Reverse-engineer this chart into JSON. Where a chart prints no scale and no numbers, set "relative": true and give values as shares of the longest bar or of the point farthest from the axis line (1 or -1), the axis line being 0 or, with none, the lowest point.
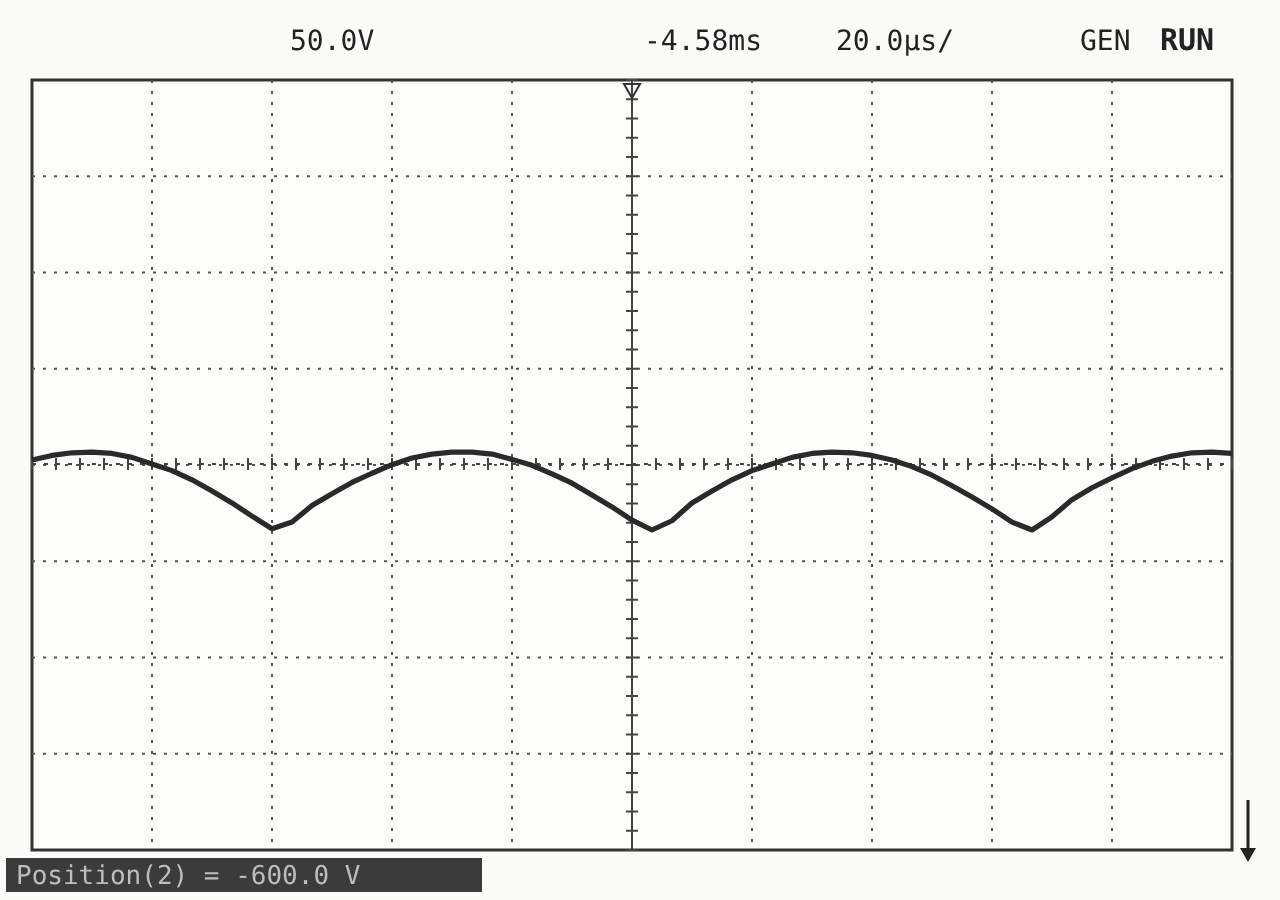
{
  "chart_data": {
    "type": "line",
    "relative": true,
    "grid": true,
    "line_style": "solid",
    "marker": "none",
    "categories": [
      null,
      null,
      null,
      null,
      null,
      null,
      null,
      null,
      null,
      null,
      null,
      null,
      null,
      null,
      null,
      null,
      null,
      null,
      null,
      null,
      null,
      null,
      null,
      null,
      null,
      null,
      null,
      null,
      null,
      null,
      null,
      null,
      null,
      null,
      null,
      null,
      null,
      null,
      null,
      null,
      null,
      null,
      null,
      null,
      null,
      null,
      null,
      null,
      null,
      null,
      null,
      null,
      null,
      null,
      null,
      null,
      null,
      null,
      null,
      null,
      null
    ],
    "series": [
      {
        "color": "#2a2a2a",
        "values": [
          0.06,
          0.13,
          0.17,
          0.18,
          0.16,
          0.1,
          0,
          -0.1,
          -0.24,
          -0.41,
          -0.59,
          -0.79,
          -0.98,
          -0.88,
          -0.63,
          -0.45,
          -0.28,
          -0.14,
          -0.01,
          0.09,
          0.15,
          0.18,
          0.18,
          0.15,
          0.07,
          -0.02,
          -0.15,
          -0.29,
          -0.47,
          -0.65,
          -0.85,
          -1,
          -0.86,
          -0.59,
          -0.41,
          -0.24,
          -0.1,
          0,
          0.1,
          0.16,
          0.18,
          0.17,
          0.13,
          0.06,
          -0.04,
          -0.17,
          -0.33,
          -0.5,
          -0.68,
          -0.88,
          -1,
          -0.8,
          -0.54,
          -0.36,
          -0.21,
          -0.07,
          0.04,
          0.12,
          0.17,
          0.18,
          0.16
        ]
      }
    ],
    "ref_lines": [
      {
        "axis": "y",
        "value": 0,
        "line_style": "dotted",
        "color": "#444444"
      }
    ],
    "annotations": [
      "50.0V",
      "-4.58ms",
      "20.0µs/",
      "GEN",
      "RUN",
      "Position(2) = -600.0 V"
    ]
  }
}
